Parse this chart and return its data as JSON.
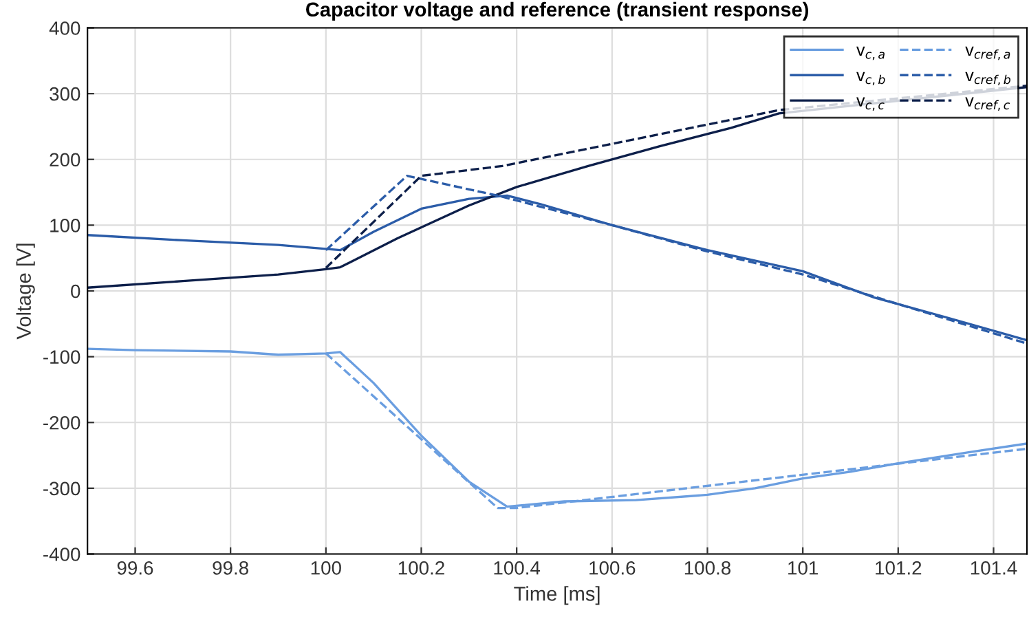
{
  "chart_data": {
    "type": "line",
    "title": "Capacitor voltage and reference (transient response)",
    "xlabel": "Time [ms]",
    "ylabel": "Voltage [V]",
    "xlim": [
      99.5,
      101.47
    ],
    "ylim": [
      -400,
      400
    ],
    "xticks": [
      99.6,
      99.8,
      100,
      100.2,
      100.4,
      100.6,
      100.8,
      101,
      101.2,
      101.4
    ],
    "yticks": [
      -400,
      -300,
      -200,
      -100,
      0,
      100,
      200,
      300,
      400
    ],
    "grid": true,
    "legend": "top right",
    "series": [
      {
        "name": "v$_{c,a}$",
        "color": "#6a9ee0",
        "line_style": "solid",
        "x": [
          99.5,
          99.6,
          99.8,
          99.9,
          100,
          100.03,
          100.1,
          100.2,
          100.3,
          100.38,
          100.5,
          100.65,
          100.8,
          100.9,
          101,
          101.1,
          101.2,
          101.35,
          101.47
        ],
        "values": [
          -88,
          -90,
          -92,
          -97,
          -95,
          -93,
          -140,
          -220,
          -290,
          -328,
          -320,
          -318,
          -310,
          -300,
          -285,
          -275,
          -262,
          -245,
          -232
        ]
      },
      {
        "name": "v$_{c,b}$",
        "color": "#2b5ca8",
        "line_style": "solid",
        "x": [
          99.5,
          99.7,
          99.9,
          100,
          100.03,
          100.1,
          100.2,
          100.3,
          100.38,
          100.45,
          100.6,
          100.8,
          101,
          101.15,
          101.3,
          101.47
        ],
        "values": [
          85,
          77,
          70,
          64,
          62,
          90,
          125,
          140,
          145,
          132,
          100,
          62,
          30,
          -10,
          -40,
          -75
        ]
      },
      {
        "name": "v$_{c,c}$",
        "color": "#0d1f4a",
        "line_style": "solid",
        "x": [
          99.5,
          99.7,
          99.9,
          100,
          100.03,
          100.15,
          100.3,
          100.4,
          100.55,
          100.7,
          100.85,
          100.95,
          101.47
        ],
        "values": [
          5,
          15,
          25,
          33,
          36,
          80,
          130,
          158,
          190,
          220,
          248,
          270,
          310
        ]
      },
      {
        "name": "v$_{cref,a}$",
        "color": "#6a9ee0",
        "line_style": "dashed",
        "x": [
          100,
          100.36,
          100.4,
          101.47
        ],
        "values": [
          -95,
          -330,
          -330,
          -240
        ]
      },
      {
        "name": "v$_{cref,b}$",
        "color": "#2b5ca8",
        "line_style": "dashed",
        "x": [
          100,
          100.17,
          100.36,
          100.6,
          100.8,
          101,
          101.2,
          101.47
        ],
        "values": [
          62,
          175,
          145,
          100,
          60,
          25,
          -20,
          -80
        ]
      },
      {
        "name": "v$_{cref,c}$",
        "color": "#0d1f4a",
        "line_style": "dashed",
        "x": [
          100,
          100.2,
          100.37,
          100.95,
          101.47
        ],
        "values": [
          35,
          175,
          190,
          275,
          312
        ]
      }
    ]
  }
}
